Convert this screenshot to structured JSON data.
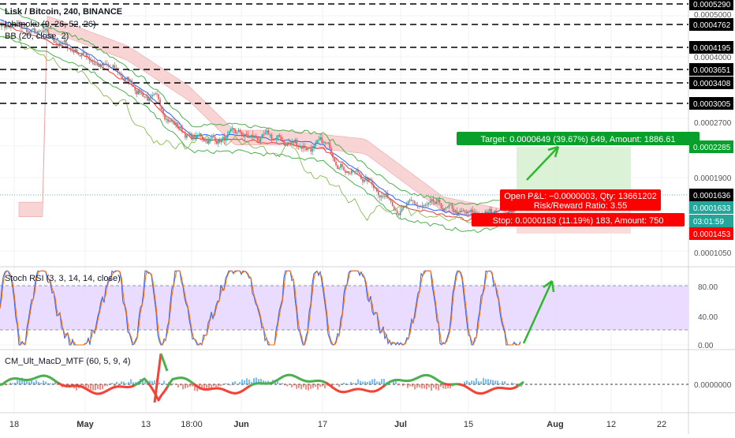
{
  "header": {
    "symbol": "Lisk / Bitcoin, 240, BINANCE",
    "ichimoku": "Ichimoku (9, 26, 52, 26)",
    "bb": "BB (20, close, 2)"
  },
  "colors": {
    "up": "#26a69a",
    "down": "#ef5350",
    "green_box": "#d6f0d0",
    "green_label": "#089f2a",
    "red_label": "#ff0000",
    "stoch_band": "#e6d6ff",
    "arrow": "#2db82d",
    "cloud_red": "#f7c6c6",
    "cloud_green": "#c8e6c9"
  },
  "price_axis": {
    "ticks": [
      "0.0005000",
      "0.0004000",
      "0.0002700",
      "0.0001900",
      "0.0001050"
    ],
    "horizontal_levels": [
      "0.0005290",
      "0.0004762",
      "0.0004195",
      "0.0003651",
      "0.0003408",
      "0.0003005"
    ],
    "target_level": "0.0002285",
    "current_price": "0.0001636",
    "entry_price": "0.0001633",
    "countdown": "03:01:59",
    "stop_level": "0.0001453"
  },
  "position": {
    "target_label": "Target: 0.0000649 (39.67%) 649, Amount: 1886.61",
    "pnl_label": "Open P&L: −0.0000003, Qty: 13661202",
    "rr_label": "Risk/Reward Ratio: 3.55",
    "stop_label": "Stop: 0.0000183 (11.19%) 183, Amount: 750"
  },
  "stoch": {
    "title": "Stoch RSI (3, 3, 14, 14, close)",
    "ticks": [
      "80.00",
      "40.00",
      "0.00"
    ]
  },
  "macd": {
    "title": "CM_Ult_MacD_MTF (60, 5, 9, 4)",
    "tick": "0.0000000"
  },
  "time_axis": [
    "18",
    "May",
    "13",
    "18:00",
    "Jun",
    "17",
    "Jul",
    "15",
    "Aug",
    "12",
    "22"
  ],
  "chart_data": {
    "type": "line",
    "title": "Lisk / Bitcoin, 240, BINANCE",
    "xlabel": "",
    "ylabel": "",
    "x": [
      "18",
      "May",
      "13",
      "18:00",
      "Jun",
      "17",
      "Jul",
      "15"
    ],
    "series": [
      {
        "values": [
          0.000435,
          0.000395,
          0.000335,
          0.000268,
          0.000268,
          0.000255,
          0.000168,
          0.000147
        ]
      }
    ],
    "ylim": [
      0.0001,
      0.00053
    ],
    "grid": true
  }
}
